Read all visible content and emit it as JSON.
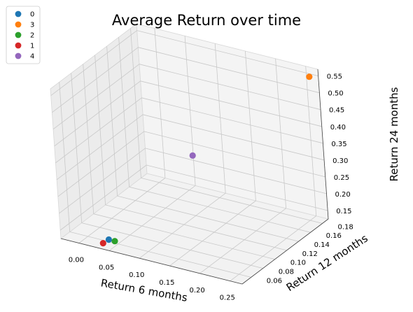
{
  "chart_data": {
    "type": "scatter",
    "title": "Average Return over time",
    "xlabel": "Return 6 months",
    "ylabel": "Return 12 months",
    "zlabel": "Return 24 months",
    "x_ticks": [
      "0.00",
      "0.05",
      "0.10",
      "0.15",
      "0.20",
      "0.25"
    ],
    "y_ticks": [
      "0.06",
      "0.08",
      "0.10",
      "0.12",
      "0.14",
      "0.16",
      "0.18"
    ],
    "z_ticks": [
      "0.15",
      "0.20",
      "0.25",
      "0.30",
      "0.35",
      "0.40",
      "0.45",
      "0.50",
      "0.55"
    ],
    "legend_position": "top-left",
    "series": [
      {
        "name": "0",
        "color": "#1f77b4",
        "x": 0.04,
        "y": 0.055,
        "z": 0.14
      },
      {
        "name": "3",
        "color": "#ff7f0e",
        "x": 0.26,
        "y": 0.185,
        "z": 0.55
      },
      {
        "name": "2",
        "color": "#2ca02c",
        "x": 0.05,
        "y": 0.055,
        "z": 0.14
      },
      {
        "name": "1",
        "color": "#d62728",
        "x": 0.03,
        "y": 0.055,
        "z": 0.125
      },
      {
        "name": "4",
        "color": "#9467bd",
        "x": 0.07,
        "y": 0.17,
        "z": 0.25
      }
    ]
  }
}
